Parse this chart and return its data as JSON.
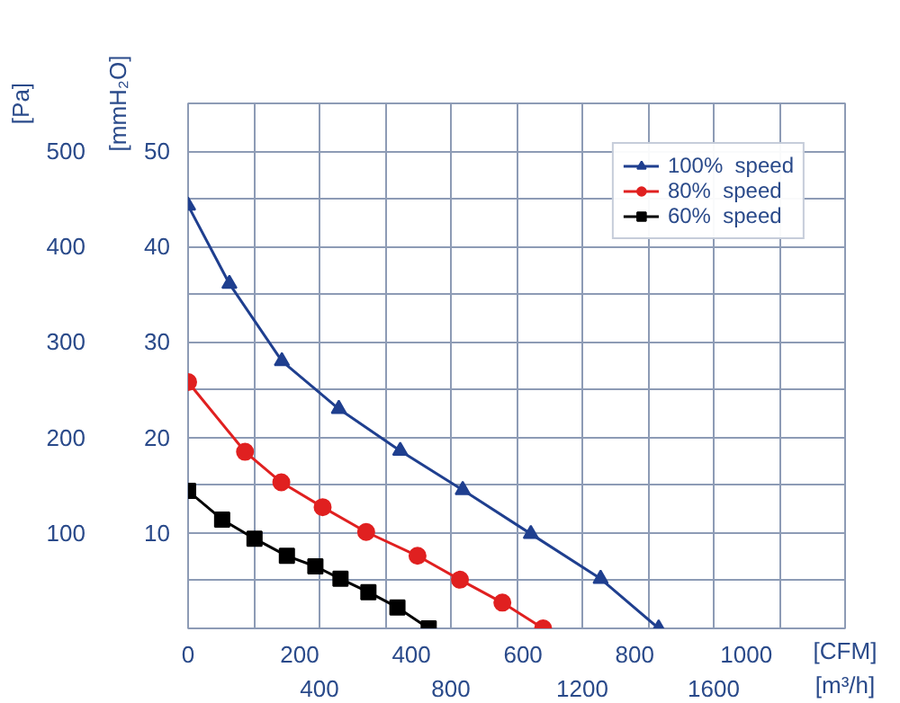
{
  "chart_data": {
    "type": "line",
    "xlabel": "[CFM]",
    "x2label": "[m³/h]",
    "ylabel": "[Pa]",
    "y2label": "[mmH₂O]",
    "xlim": [
      0,
      1177
    ],
    "xticks": [
      0,
      200,
      400,
      600,
      800,
      1000
    ],
    "x2lim": [
      0,
      2000
    ],
    "x2ticks": [
      {
        "value": 0,
        "label": null
      },
      {
        "value": 200,
        "label": null
      },
      400,
      {
        "value": 600,
        "label": null
      },
      800,
      {
        "value": 1000,
        "label": null
      },
      1200,
      {
        "value": 1400,
        "label": null
      },
      1600,
      {
        "value": 1800,
        "label": null
      },
      {
        "value": 2000,
        "label": null
      }
    ],
    "ylim": [
      0,
      550
    ],
    "yticks": [
      {
        "value": 50,
        "label": null
      },
      100,
      {
        "value": 150,
        "label": null
      },
      200,
      {
        "value": 250,
        "label": null
      },
      300,
      {
        "value": 350,
        "label": null
      },
      400,
      {
        "value": 450,
        "label": null
      },
      500,
      {
        "value": 550,
        "label": null
      }
    ],
    "y2lim": [
      0,
      55
    ],
    "y2ticks": [
      10,
      20,
      30,
      40,
      50
    ],
    "grid": true,
    "legend": "top right",
    "line_style": "solid",
    "series": [
      {
        "name": "100%  speed",
        "color": "#1f3f8f",
        "marker": "triangle",
        "x": [
          0,
          74,
          168,
          270,
          380,
          492,
          614,
          739,
          843
        ],
        "values": [
          443,
          361,
          280,
          230,
          186,
          145,
          99,
          52,
          0
        ]
      },
      {
        "name": "80%  speed",
        "color": "#e02020",
        "marker": "circle",
        "x": [
          0,
          102,
          167,
          241,
          319,
          411,
          487,
          563,
          636
        ],
        "values": [
          258,
          185,
          153,
          127,
          101,
          76,
          51,
          27,
          0
        ]
      },
      {
        "name": "60%  speed",
        "color": "#000000",
        "marker": "square",
        "x": [
          0,
          61,
          119,
          177,
          228,
          273,
          323,
          375,
          431
        ],
        "values": [
          144,
          114,
          94,
          76,
          65,
          52,
          38,
          22,
          0
        ]
      }
    ]
  }
}
